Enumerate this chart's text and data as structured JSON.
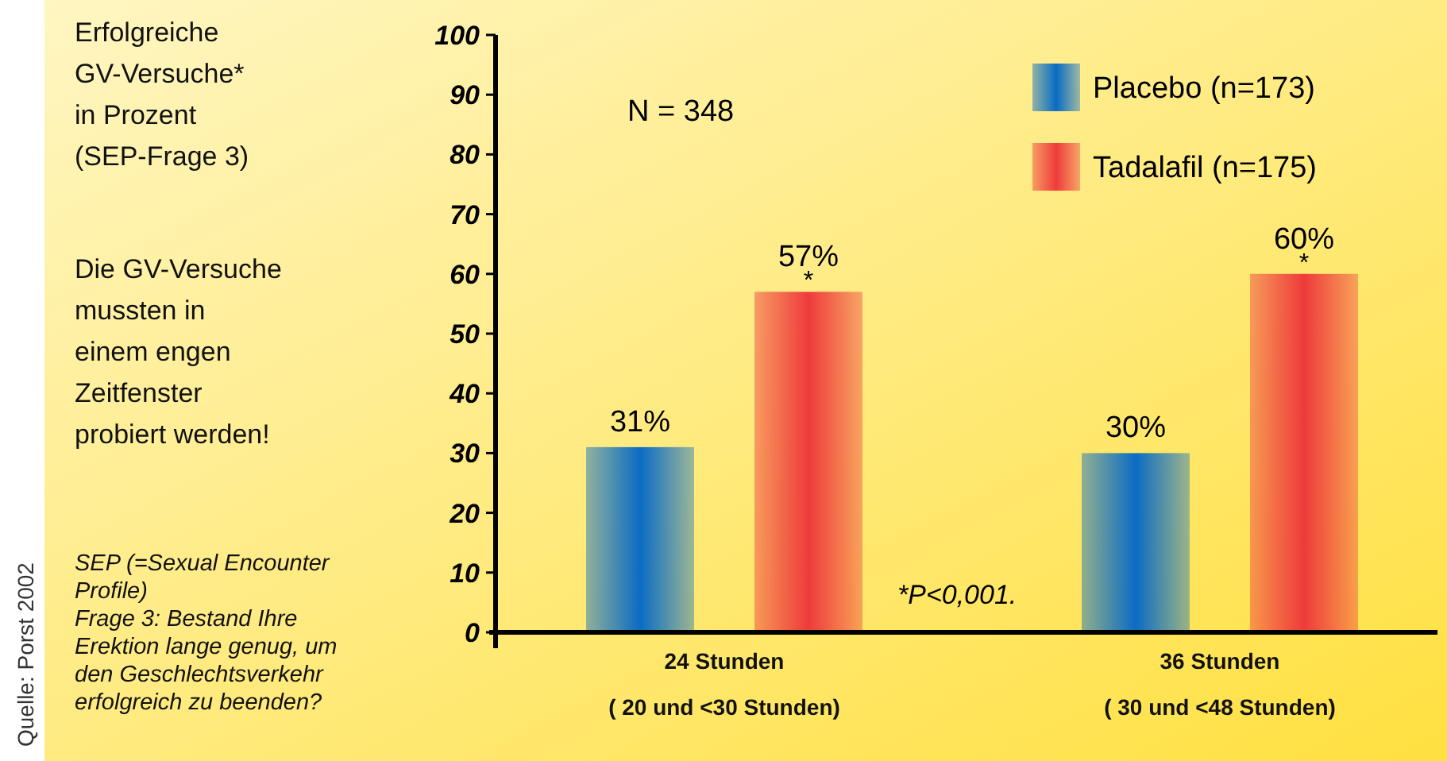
{
  "chart_data": {
    "type": "bar",
    "title": "Erfolgreiche\nGV-Versuche*\nin Prozent\n(SEP-Frage 3)",
    "subtitle": "Die GV-Versuche\nmussten in\neinem engen\nZeitfenster\nprobiert werden!",
    "categories": [
      "24 Stunden\n( 20 und <30 Stunden)",
      "36 Stunden\n( 30 und <48 Stunden)"
    ],
    "series": [
      {
        "name": "Placebo (n=173)",
        "color": "#0a6cc4",
        "values": [
          31,
          30
        ],
        "value_labels": [
          "31%",
          "30%"
        ]
      },
      {
        "name": "Tadalafil (n=175)",
        "color": "#ee3b3b",
        "values": [
          57,
          60
        ],
        "value_labels": [
          "57%",
          "60%"
        ]
      }
    ],
    "ylim": [
      0,
      100
    ],
    "yticks": [
      0,
      10,
      20,
      30,
      40,
      50,
      60,
      70,
      80,
      90,
      100
    ],
    "legend": "top right",
    "grid": false,
    "annotations": [
      "*",
      "*",
      "N = 348",
      "*P<0,001.",
      "SEP (=Sexual Encounter\nProfile)\nFrage 3: Bestand Ihre\nErektion lange genug, um\nden Geschlechtsverkehr\nerfolgreich zu beenden?",
      "Quelle: Porst 2002"
    ]
  }
}
